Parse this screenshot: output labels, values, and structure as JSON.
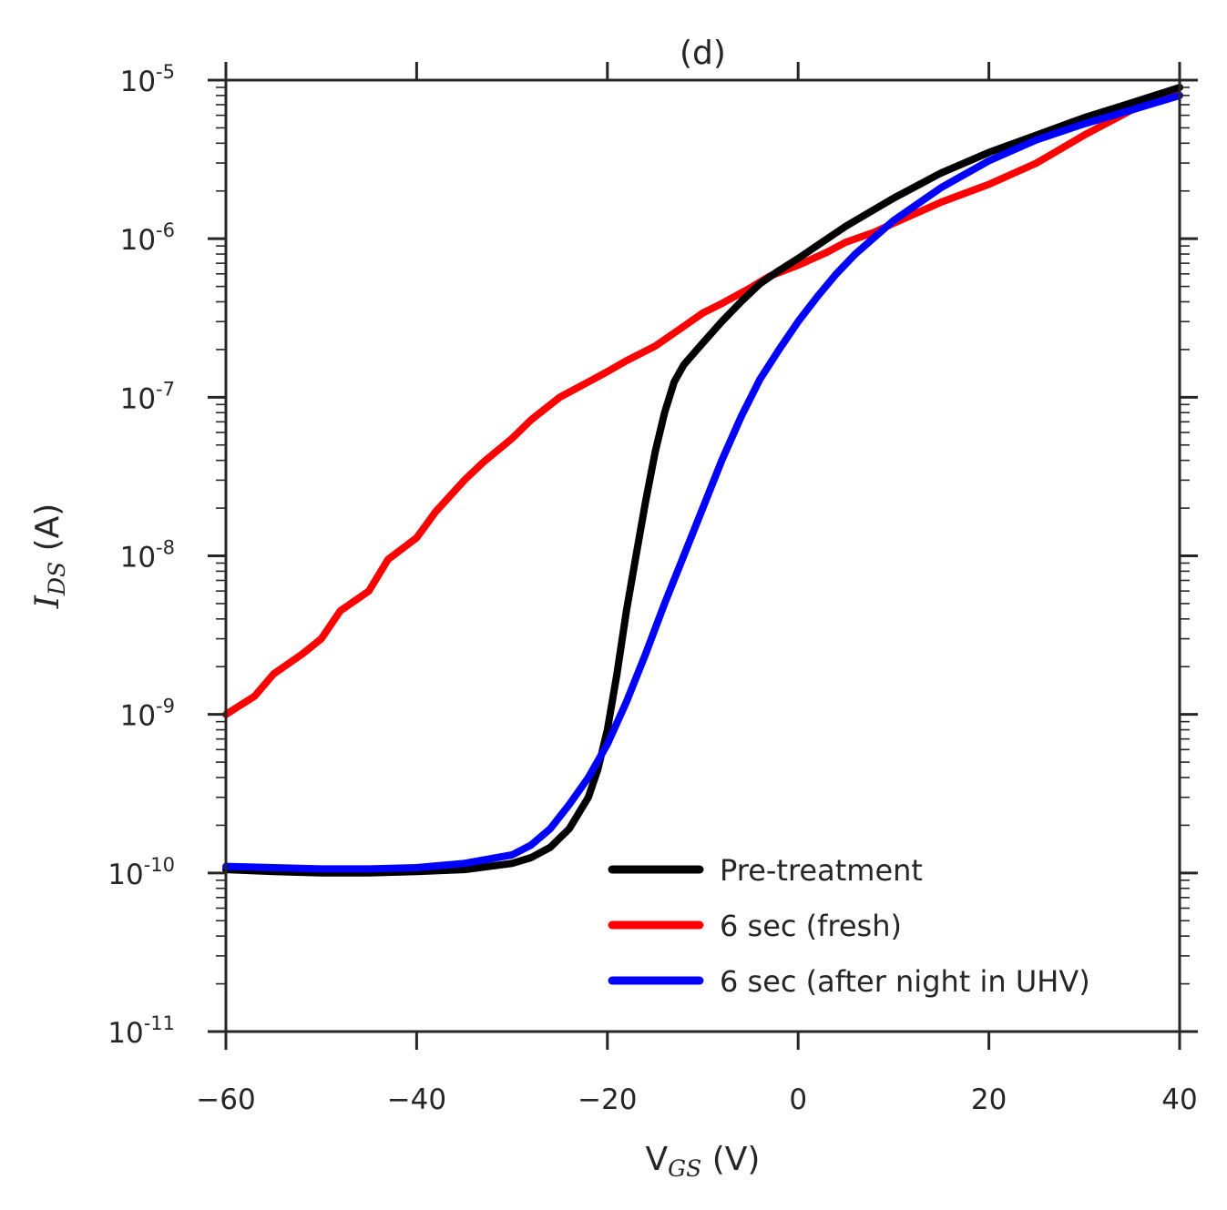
{
  "chart_data": {
    "type": "line",
    "title": "(d)",
    "xlabel": {
      "main": "V",
      "sub": "GS",
      "unit": " (V)"
    },
    "ylabel": {
      "main": "I",
      "sub": "DS",
      "unit": " (A)"
    },
    "xlim": [
      -60,
      40
    ],
    "ylim": [
      1e-11,
      1e-05
    ],
    "yscale": "log",
    "grid": false,
    "legend_position": "lower-right",
    "x_ticks": [
      {
        "value": -60,
        "label": "−60"
      },
      {
        "value": -40,
        "label": "−40"
      },
      {
        "value": -20,
        "label": "−20"
      },
      {
        "value": 0,
        "label": "0"
      },
      {
        "value": 20,
        "label": "20"
      },
      {
        "value": 40,
        "label": "40"
      }
    ],
    "y_ticks": [
      {
        "value": 1e-11,
        "base": "10",
        "exp": "-11"
      },
      {
        "value": 1e-10,
        "base": "10",
        "exp": "-10"
      },
      {
        "value": 1e-09,
        "base": "10",
        "exp": "-9"
      },
      {
        "value": 1e-08,
        "base": "10",
        "exp": "-8"
      },
      {
        "value": 1e-07,
        "base": "10",
        "exp": "-7"
      },
      {
        "value": 1e-06,
        "base": "10",
        "exp": "-6"
      },
      {
        "value": 1e-05,
        "base": "10",
        "exp": "-5"
      }
    ],
    "series": [
      {
        "name": "Pre-treatment",
        "color": "#000000",
        "x": [
          -60,
          -55,
          -50,
          -45,
          -40,
          -35,
          -30,
          -28,
          -26,
          -24,
          -22,
          -21,
          -20,
          -19,
          -18,
          -17,
          -16,
          -15,
          -14,
          -13,
          -12,
          -10,
          -8,
          -6,
          -4,
          -2,
          0,
          5,
          10,
          15,
          20,
          25,
          30,
          35,
          40
        ],
        "y": [
          1.05e-10,
          1.02e-10,
          1e-10,
          1e-10,
          1.02e-10,
          1.05e-10,
          1.15e-10,
          1.25e-10,
          1.45e-10,
          1.9e-10,
          3e-10,
          4.5e-10,
          8e-10,
          1.8e-09,
          4.5e-09,
          1e-08,
          2.2e-08,
          4.5e-08,
          8e-08,
          1.25e-07,
          1.6e-07,
          2.2e-07,
          3e-07,
          4e-07,
          5.2e-07,
          6.3e-07,
          7.5e-07,
          1.2e-06,
          1.8e-06,
          2.6e-06,
          3.5e-06,
          4.5e-06,
          5.8e-06,
          7.2e-06,
          9e-06
        ]
      },
      {
        "name": "6 sec (fresh)",
        "color": "#ff0000",
        "x": [
          -60,
          -57,
          -55,
          -52,
          -50,
          -48,
          -45,
          -43,
          -40,
          -38,
          -35,
          -33,
          -30,
          -28,
          -25,
          -22,
          -20,
          -18,
          -15,
          -12,
          -10,
          -8,
          -5,
          -3,
          0,
          3,
          5,
          8,
          10,
          15,
          20,
          25,
          30,
          35,
          40
        ],
        "y": [
          1e-09,
          1.3e-09,
          1.8e-09,
          2.4e-09,
          3e-09,
          4.5e-09,
          6e-09,
          9.5e-09,
          1.3e-08,
          1.9e-08,
          3e-08,
          3.9e-08,
          5.5e-08,
          7.2e-08,
          1e-07,
          1.25e-07,
          1.45e-07,
          1.7e-07,
          2.1e-07,
          2.8e-07,
          3.4e-07,
          3.9e-07,
          4.9e-07,
          5.8e-07,
          6.8e-07,
          8.2e-07,
          9.5e-07,
          1.1e-06,
          1.25e-06,
          1.7e-06,
          2.2e-06,
          3e-06,
          4.5e-06,
          6.5e-06,
          9e-06
        ]
      },
      {
        "name": "6 sec (after night in UHV)",
        "color": "#0000ff",
        "x": [
          -60,
          -55,
          -50,
          -45,
          -40,
          -35,
          -30,
          -28,
          -26,
          -24,
          -22,
          -20,
          -18,
          -16,
          -14,
          -12,
          -10,
          -8,
          -6,
          -4,
          -2,
          0,
          2,
          4,
          6,
          10,
          15,
          20,
          25,
          30,
          35,
          40
        ],
        "y": [
          1.1e-10,
          1.08e-10,
          1.06e-10,
          1.06e-10,
          1.08e-10,
          1.15e-10,
          1.3e-10,
          1.5e-10,
          1.9e-10,
          2.7e-10,
          4e-10,
          6.5e-10,
          1.2e-09,
          2.4e-09,
          5e-09,
          1e-08,
          2e-08,
          4e-08,
          7.5e-08,
          1.3e-07,
          2e-07,
          3e-07,
          4.3e-07,
          6e-07,
          8e-07,
          1.3e-06,
          2.1e-06,
          3.1e-06,
          4.2e-06,
          5.3e-06,
          6.5e-06,
          8e-06
        ]
      }
    ]
  }
}
